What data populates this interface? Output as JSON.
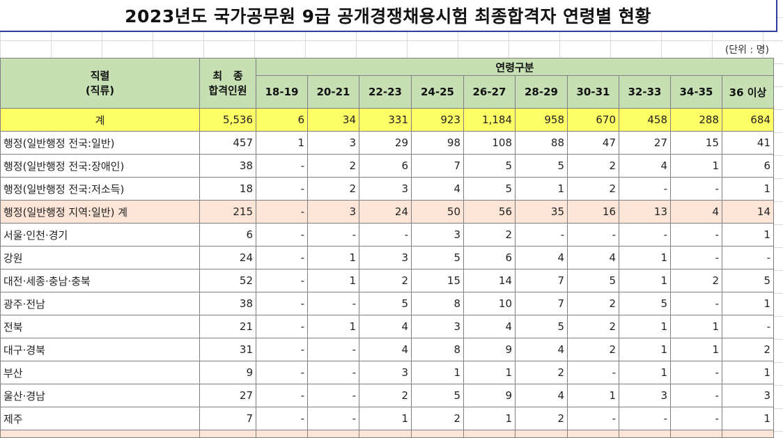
{
  "title": "2023년도 국가공무원 9급 공개경쟁채용시험 최종합격자 연령별 현황",
  "unit": "(단위 : 명)",
  "header": {
    "job_line1": "직렬",
    "job_line2": "(직류)",
    "final_line1": "최   종",
    "final_line2": "합격인원",
    "age_group": "연령구분",
    "ages": [
      "18-19",
      "20-21",
      "22-23",
      "24-25",
      "26-27",
      "28-29",
      "30-31",
      "32-33",
      "34-35",
      "36 이상"
    ]
  },
  "rows": [
    {
      "name": "계",
      "type": "total",
      "total": "5,536",
      "values": [
        "6",
        "34",
        "331",
        "923",
        "1,184",
        "958",
        "670",
        "458",
        "288",
        "684"
      ]
    },
    {
      "name": "행정(일반행정 전국:일반)",
      "type": "normal",
      "total": "457",
      "values": [
        "1",
        "3",
        "29",
        "98",
        "108",
        "88",
        "47",
        "27",
        "15",
        "41"
      ]
    },
    {
      "name": "행정(일반행정 전국:장애인)",
      "type": "normal",
      "total": "38",
      "values": [
        "-",
        "2",
        "6",
        "7",
        "5",
        "5",
        "2",
        "4",
        "1",
        "6"
      ]
    },
    {
      "name": "행정(일반행정 전국:저소득)",
      "type": "normal",
      "total": "18",
      "values": [
        "-",
        "2",
        "3",
        "4",
        "5",
        "1",
        "2",
        "-",
        "-",
        "1"
      ]
    },
    {
      "name": "행정(일반행정 지역:일반) 계",
      "type": "subtotal",
      "total": "215",
      "values": [
        "-",
        "3",
        "24",
        "50",
        "56",
        "35",
        "16",
        "13",
        "4",
        "14"
      ]
    },
    {
      "name": "서울·인천·경기",
      "type": "normal",
      "total": "6",
      "values": [
        "-",
        "-",
        "-",
        "3",
        "2",
        "-",
        "-",
        "-",
        "-",
        "1"
      ]
    },
    {
      "name": "강원",
      "type": "normal",
      "total": "24",
      "values": [
        "-",
        "1",
        "3",
        "5",
        "6",
        "4",
        "4",
        "1",
        "-",
        "-"
      ]
    },
    {
      "name": "대전·세종·충남·충북",
      "type": "normal",
      "total": "52",
      "values": [
        "-",
        "1",
        "2",
        "15",
        "14",
        "7",
        "5",
        "1",
        "2",
        "5"
      ]
    },
    {
      "name": "광주·전남",
      "type": "normal",
      "total": "38",
      "values": [
        "-",
        "-",
        "5",
        "8",
        "10",
        "7",
        "2",
        "5",
        "-",
        "1"
      ]
    },
    {
      "name": "전북",
      "type": "normal",
      "total": "21",
      "values": [
        "-",
        "1",
        "4",
        "3",
        "4",
        "5",
        "2",
        "1",
        "1",
        "-"
      ]
    },
    {
      "name": "대구·경북",
      "type": "normal",
      "total": "31",
      "values": [
        "-",
        "-",
        "4",
        "8",
        "9",
        "4",
        "2",
        "1",
        "1",
        "2"
      ]
    },
    {
      "name": "부산",
      "type": "normal",
      "total": "9",
      "values": [
        "-",
        "-",
        "3",
        "1",
        "1",
        "2",
        "-",
        "1",
        "-",
        "1"
      ]
    },
    {
      "name": "울산·경남",
      "type": "normal",
      "total": "27",
      "values": [
        "-",
        "-",
        "2",
        "5",
        "9",
        "4",
        "1",
        "3",
        "-",
        "3"
      ]
    },
    {
      "name": "제주",
      "type": "normal",
      "total": "7",
      "values": [
        "-",
        "-",
        "1",
        "2",
        "1",
        "2",
        "-",
        "-",
        "-",
        "1"
      ]
    }
  ]
}
